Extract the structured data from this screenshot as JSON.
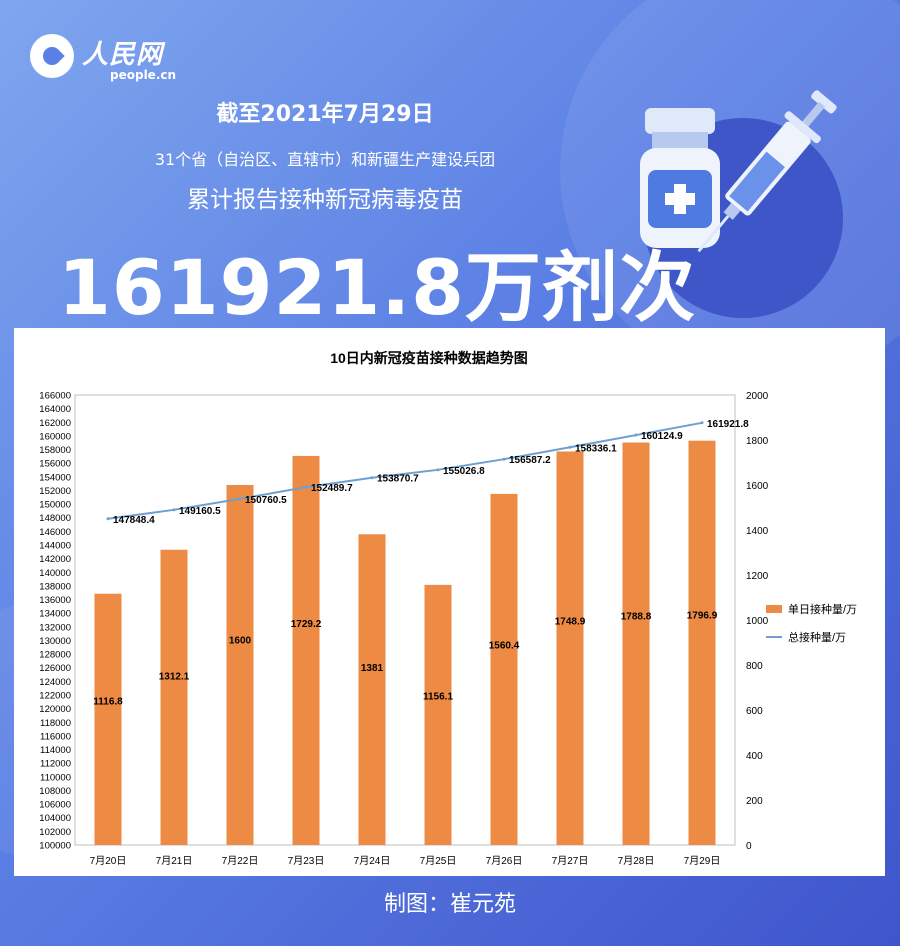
{
  "brand": {
    "logo_cn": "人民网",
    "logo_en": "people.cn"
  },
  "header": {
    "date_line": "截至2021年7月29日",
    "scope_line": "31个省（自治区、直辖市）和新疆生产建设兵团",
    "metric_label": "累计报告接种新冠病毒疫苗",
    "big_number": "161921.8万剂次"
  },
  "credit": "制图：崔元苑",
  "colors": {
    "bar": "#ed8a43",
    "line": "#6f9fd0",
    "background": "#5b7fe4"
  },
  "icons": [
    "vaccine-vial-icon",
    "syringe-icon"
  ],
  "chart_data": {
    "type": "bar",
    "title": "10日内新冠疫苗接种数据趋势图",
    "categories": [
      "7月20日",
      "7月21日",
      "7月22日",
      "7月23日",
      "7月24日",
      "7月25日",
      "7月26日",
      "7月27日",
      "7月28日",
      "7月29日"
    ],
    "series": [
      {
        "name": "单日接种量/万",
        "type": "bar",
        "axis": "right",
        "values": [
          1116.8,
          1312.1,
          1600,
          1729.2,
          1381,
          1156.1,
          1560.4,
          1748.9,
          1788.8,
          1796.9
        ],
        "labels": [
          "1116.8",
          "1312.1",
          "1600",
          "1729.2",
          "1381",
          "1156.1",
          "1560.4",
          "1748.9",
          "1788.8",
          "1796.9"
        ]
      },
      {
        "name": "总接种量/万",
        "type": "line",
        "axis": "left",
        "values": [
          147848.4,
          149160.5,
          150760.5,
          152489.7,
          153870.7,
          155026.8,
          156587.2,
          158336.1,
          160124.9,
          161921.8
        ],
        "labels": [
          "147848.4",
          "149160.5",
          "150760.5",
          "152489.7",
          "153870.7",
          "155026.8",
          "156587.2",
          "158336.1",
          "160124.9",
          "161921.8"
        ]
      }
    ],
    "y_left": {
      "min": 100000,
      "max": 166000,
      "step": 2000,
      "ticks": [
        "100000",
        "102000",
        "104000",
        "106000",
        "108000",
        "110000",
        "112000",
        "114000",
        "116000",
        "118000",
        "120000",
        "122000",
        "124000",
        "126000",
        "128000",
        "130000",
        "132000",
        "134000",
        "136000",
        "138000",
        "140000",
        "142000",
        "144000",
        "146000",
        "148000",
        "150000",
        "152000",
        "154000",
        "156000",
        "158000",
        "160000",
        "162000",
        "164000",
        "166000"
      ]
    },
    "y_right": {
      "min": 0,
      "max": 2000,
      "step": 200,
      "ticks": [
        "0",
        "200",
        "400",
        "600",
        "800",
        "1000",
        "1200",
        "1400",
        "1600",
        "1800",
        "2000"
      ]
    },
    "legend_position": "right",
    "grid": false
  }
}
